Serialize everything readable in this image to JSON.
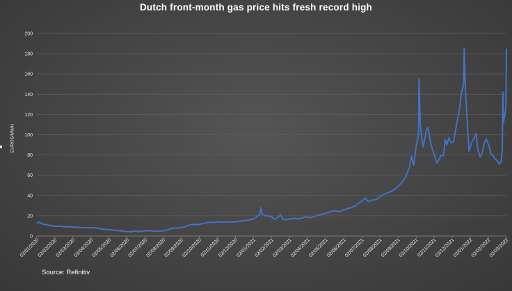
{
  "title": "Dutch front-month gas price hits fresh record high",
  "source": "Source: Refinitiv",
  "chart_data": {
    "type": "line",
    "title": "Dutch front-month gas price hits fresh record high",
    "xlabel": "",
    "ylabel": "EUROS/MWH",
    "ylim": [
      0,
      200
    ],
    "yticks": [
      0,
      20,
      40,
      60,
      80,
      100,
      120,
      140,
      160,
      180,
      200
    ],
    "grid": true,
    "legend": "none",
    "line_color": "#4472C4",
    "xlim": [
      "2020-01-02",
      "2022-03-02"
    ],
    "x_tick_labels": [
      "02/01/2020",
      "02/02/2020",
      "02/03/2020",
      "02/04/2020",
      "02/05/2020",
      "02/06/2020",
      "02/07/2020",
      "02/08/2020",
      "02/09/2020",
      "02/10/2020",
      "02/11/2020",
      "02/12/2020",
      "02/01/2021",
      "02/02/2021",
      "02/03/2021",
      "02/04/2021",
      "02/05/2021",
      "02/06/2021",
      "02/07/2021",
      "02/08/2021",
      "02/09/2021",
      "02/10/2021",
      "02/11/2021",
      "02/12/2021",
      "02/01/2022",
      "02/02/2022",
      "02/03/2022"
    ],
    "series": [
      {
        "points": [
          [
            "2020-01-02",
            12.5
          ],
          [
            "2020-01-06",
            13.8
          ],
          [
            "2020-01-10",
            12.0
          ],
          [
            "2020-01-15",
            11.5
          ],
          [
            "2020-01-20",
            11.0
          ],
          [
            "2020-01-27",
            10.0
          ],
          [
            "2020-02-03",
            9.5
          ],
          [
            "2020-02-10",
            9.8
          ],
          [
            "2020-02-17",
            9.0
          ],
          [
            "2020-02-24",
            9.3
          ],
          [
            "2020-03-02",
            8.8
          ],
          [
            "2020-03-09",
            8.6
          ],
          [
            "2020-03-16",
            8.3
          ],
          [
            "2020-03-23",
            8.2
          ],
          [
            "2020-03-30",
            8.0
          ],
          [
            "2020-04-06",
            8.3
          ],
          [
            "2020-04-13",
            7.7
          ],
          [
            "2020-04-20",
            6.9
          ],
          [
            "2020-04-27",
            6.5
          ],
          [
            "2020-05-04",
            6.4
          ],
          [
            "2020-05-11",
            5.8
          ],
          [
            "2020-05-18",
            5.3
          ],
          [
            "2020-05-25",
            4.8
          ],
          [
            "2020-06-01",
            4.4
          ],
          [
            "2020-06-08",
            4.2
          ],
          [
            "2020-06-15",
            4.9
          ],
          [
            "2020-06-22",
            4.4
          ],
          [
            "2020-06-29",
            4.9
          ],
          [
            "2020-07-06",
            5.3
          ],
          [
            "2020-07-13",
            5.1
          ],
          [
            "2020-07-20",
            4.8
          ],
          [
            "2020-07-27",
            4.7
          ],
          [
            "2020-08-03",
            5.2
          ],
          [
            "2020-08-10",
            6.3
          ],
          [
            "2020-08-17",
            7.7
          ],
          [
            "2020-08-24",
            7.9
          ],
          [
            "2020-08-31",
            8.3
          ],
          [
            "2020-09-07",
            9.0
          ],
          [
            "2020-09-14",
            10.8
          ],
          [
            "2020-09-21",
            11.5
          ],
          [
            "2020-09-28",
            11.2
          ],
          [
            "2020-10-05",
            12.0
          ],
          [
            "2020-10-12",
            12.8
          ],
          [
            "2020-10-19",
            13.6
          ],
          [
            "2020-10-26",
            13.3
          ],
          [
            "2020-11-02",
            14.1
          ],
          [
            "2020-11-09",
            13.6
          ],
          [
            "2020-11-16",
            13.9
          ],
          [
            "2020-11-23",
            13.7
          ],
          [
            "2020-11-30",
            13.9
          ],
          [
            "2020-12-07",
            14.4
          ],
          [
            "2020-12-14",
            15.1
          ],
          [
            "2020-12-21",
            15.5
          ],
          [
            "2020-12-28",
            16.4
          ],
          [
            "2021-01-04",
            18.0
          ],
          [
            "2021-01-08",
            20.0
          ],
          [
            "2021-01-11",
            21.5
          ],
          [
            "2021-01-13",
            28.0
          ],
          [
            "2021-01-15",
            22.0
          ],
          [
            "2021-01-20",
            20.0
          ],
          [
            "2021-01-27",
            19.8
          ],
          [
            "2021-02-01",
            18.5
          ],
          [
            "2021-02-05",
            16.5
          ],
          [
            "2021-02-10",
            18.0
          ],
          [
            "2021-02-15",
            21.0
          ],
          [
            "2021-02-18",
            17.0
          ],
          [
            "2021-02-22",
            16.0
          ],
          [
            "2021-03-01",
            16.5
          ],
          [
            "2021-03-08",
            17.5
          ],
          [
            "2021-03-15",
            17.0
          ],
          [
            "2021-03-22",
            17.5
          ],
          [
            "2021-03-29",
            19.0
          ],
          [
            "2021-04-05",
            18.0
          ],
          [
            "2021-04-12",
            19.0
          ],
          [
            "2021-04-19",
            20.5
          ],
          [
            "2021-04-26",
            21.5
          ],
          [
            "2021-05-03",
            22.5
          ],
          [
            "2021-05-10",
            24.0
          ],
          [
            "2021-05-17",
            25.0
          ],
          [
            "2021-05-24",
            24.0
          ],
          [
            "2021-05-31",
            25.5
          ],
          [
            "2021-06-07",
            27.0
          ],
          [
            "2021-06-14",
            28.0
          ],
          [
            "2021-06-21",
            30.0
          ],
          [
            "2021-06-28",
            33.0
          ],
          [
            "2021-07-05",
            36.0
          ],
          [
            "2021-07-08",
            37.5
          ],
          [
            "2021-07-12",
            34.0
          ],
          [
            "2021-07-19",
            35.5
          ],
          [
            "2021-07-26",
            36.0
          ],
          [
            "2021-08-02",
            39.0
          ],
          [
            "2021-08-09",
            41.5
          ],
          [
            "2021-08-16",
            43.0
          ],
          [
            "2021-08-23",
            45.0
          ],
          [
            "2021-08-30",
            48.0
          ],
          [
            "2021-09-06",
            52.0
          ],
          [
            "2021-09-13",
            58.0
          ],
          [
            "2021-09-20",
            68.0
          ],
          [
            "2021-09-23",
            79.0
          ],
          [
            "2021-09-27",
            70.0
          ],
          [
            "2021-10-01",
            88.0
          ],
          [
            "2021-10-05",
            100.0
          ],
          [
            "2021-10-06",
            155.0
          ],
          [
            "2021-10-08",
            110.0
          ],
          [
            "2021-10-11",
            95.0
          ],
          [
            "2021-10-13",
            88.0
          ],
          [
            "2021-10-18",
            104.0
          ],
          [
            "2021-10-21",
            107.0
          ],
          [
            "2021-10-26",
            90.0
          ],
          [
            "2021-11-01",
            80.0
          ],
          [
            "2021-11-05",
            72.0
          ],
          [
            "2021-11-09",
            76.0
          ],
          [
            "2021-11-12",
            80.0
          ],
          [
            "2021-11-16",
            79.0
          ],
          [
            "2021-11-19",
            95.0
          ],
          [
            "2021-11-22",
            90.0
          ],
          [
            "2021-11-25",
            97.0
          ],
          [
            "2021-11-29",
            92.0
          ],
          [
            "2021-12-03",
            93.0
          ],
          [
            "2021-12-08",
            110.0
          ],
          [
            "2021-12-13",
            125.0
          ],
          [
            "2021-12-16",
            140.0
          ],
          [
            "2021-12-20",
            150.0
          ],
          [
            "2021-12-21",
            185.0
          ],
          [
            "2021-12-23",
            145.0
          ],
          [
            "2021-12-27",
            103.0
          ],
          [
            "2021-12-29",
            84.0
          ],
          [
            "2022-01-03",
            93.0
          ],
          [
            "2022-01-06",
            96.0
          ],
          [
            "2022-01-10",
            101.0
          ],
          [
            "2022-01-13",
            85.0
          ],
          [
            "2022-01-17",
            78.0
          ],
          [
            "2022-01-20",
            82.0
          ],
          [
            "2022-01-24",
            92.0
          ],
          [
            "2022-01-27",
            96.0
          ],
          [
            "2022-02-01",
            88.0
          ],
          [
            "2022-02-04",
            81.0
          ],
          [
            "2022-02-08",
            79.0
          ],
          [
            "2022-02-11",
            76.0
          ],
          [
            "2022-02-15",
            74.0
          ],
          [
            "2022-02-18",
            71.0
          ],
          [
            "2022-02-21",
            73.0
          ],
          [
            "2022-02-23",
            84.0
          ],
          [
            "2022-02-24",
            142.0
          ],
          [
            "2022-02-25",
            112.0
          ],
          [
            "2022-02-28",
            122.0
          ],
          [
            "2022-03-01",
            126.0
          ],
          [
            "2022-03-02",
            185.0
          ]
        ]
      }
    ]
  }
}
